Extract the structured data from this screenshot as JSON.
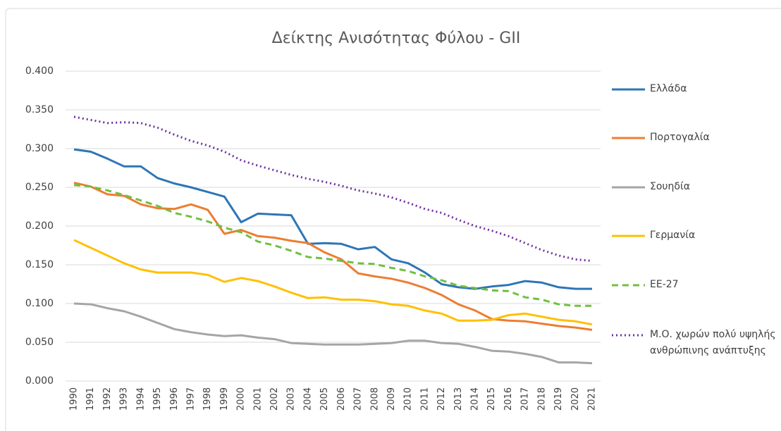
{
  "chart_data": {
    "type": "line",
    "title": "Δείκτης Ανισότητας Φύλου - GII",
    "categories": [
      "1990",
      "1991",
      "1992",
      "1993",
      "1994",
      "1995",
      "1996",
      "1997",
      "1998",
      "1999",
      "2000",
      "2001",
      "2002",
      "2003",
      "2004",
      "2005",
      "2006",
      "2007",
      "2008",
      "2009",
      "2010",
      "2011",
      "2012",
      "2013",
      "2014",
      "2015",
      "2016",
      "2017",
      "2018",
      "2019",
      "2020",
      "2021"
    ],
    "series": [
      {
        "name": "Ελλάδα",
        "color": "#2e75b6",
        "style": "solid",
        "values": [
          0.299,
          0.296,
          0.287,
          0.277,
          0.277,
          0.262,
          0.255,
          0.25,
          0.244,
          0.238,
          0.205,
          0.216,
          0.215,
          0.214,
          0.177,
          0.178,
          0.177,
          0.17,
          0.173,
          0.157,
          0.152,
          0.14,
          0.125,
          0.121,
          0.119,
          0.122,
          0.124,
          0.129,
          0.127,
          0.121,
          0.119,
          0.119
        ]
      },
      {
        "name": "Πορτογαλία",
        "color": "#ed7d31",
        "style": "solid",
        "values": [
          0.256,
          0.251,
          0.241,
          0.239,
          0.228,
          0.223,
          0.222,
          0.228,
          0.221,
          0.19,
          0.195,
          0.187,
          0.185,
          0.181,
          0.178,
          0.166,
          0.157,
          0.139,
          0.135,
          0.132,
          0.127,
          0.12,
          0.111,
          0.099,
          0.091,
          0.08,
          0.078,
          0.077,
          0.074,
          0.071,
          0.069,
          0.066
        ]
      },
      {
        "name": "Σουηδία",
        "color": "#a5a5a5",
        "style": "solid",
        "values": [
          0.1,
          0.099,
          0.094,
          0.09,
          0.083,
          0.075,
          0.067,
          0.063,
          0.06,
          0.058,
          0.059,
          0.056,
          0.054,
          0.049,
          0.048,
          0.047,
          0.047,
          0.047,
          0.048,
          0.049,
          0.052,
          0.052,
          0.049,
          0.048,
          0.044,
          0.039,
          0.038,
          0.035,
          0.031,
          0.024,
          0.024,
          0.023
        ]
      },
      {
        "name": "Γερμανία",
        "color": "#ffc000",
        "style": "solid",
        "values": [
          0.182,
          0.172,
          0.162,
          0.152,
          0.144,
          0.14,
          0.14,
          0.14,
          0.137,
          0.128,
          0.133,
          0.129,
          0.122,
          0.114,
          0.107,
          0.108,
          0.105,
          0.105,
          0.103,
          0.099,
          0.097,
          0.091,
          0.087,
          0.078,
          0.078,
          0.079,
          0.085,
          0.087,
          0.083,
          0.079,
          0.077,
          0.073
        ]
      },
      {
        "name": "ΕΕ-27",
        "color": "#70c040",
        "style": "dashed",
        "values": [
          0.253,
          0.251,
          0.246,
          0.24,
          0.233,
          0.226,
          0.217,
          0.212,
          0.206,
          0.198,
          0.192,
          0.18,
          0.175,
          0.168,
          0.16,
          0.158,
          0.155,
          0.152,
          0.151,
          0.146,
          0.142,
          0.135,
          0.13,
          0.123,
          0.12,
          0.117,
          0.116,
          0.108,
          0.105,
          0.099,
          0.097,
          0.097
        ]
      },
      {
        "name": "Μ.Ο. χωρών πολύ υψηλής ανθρώπινης ανάπτυξης",
        "color": "#7030a0",
        "style": "dotted",
        "values": [
          0.341,
          0.337,
          0.333,
          0.334,
          0.333,
          0.327,
          0.318,
          0.31,
          0.304,
          0.296,
          0.285,
          0.278,
          0.272,
          0.266,
          0.261,
          0.257,
          0.252,
          0.246,
          0.242,
          0.237,
          0.23,
          0.222,
          0.217,
          0.208,
          0.2,
          0.194,
          0.187,
          0.178,
          0.169,
          0.162,
          0.157,
          0.155
        ]
      }
    ],
    "ylim": [
      0,
      0.4
    ],
    "yticks": [
      {
        "value": 0,
        "label": "0.000"
      },
      {
        "value": 0.05,
        "label": "0.050"
      },
      {
        "value": 0.1,
        "label": "0.100"
      },
      {
        "value": 0.15,
        "label": "0.150"
      },
      {
        "value": 0.2,
        "label": "0.200"
      },
      {
        "value": 0.25,
        "label": "0.250"
      },
      {
        "value": 0.3,
        "label": "0.300"
      },
      {
        "value": 0.35,
        "label": "0.350"
      },
      {
        "value": 0.4,
        "label": "0.400"
      }
    ],
    "grid": true,
    "legend": "right"
  }
}
